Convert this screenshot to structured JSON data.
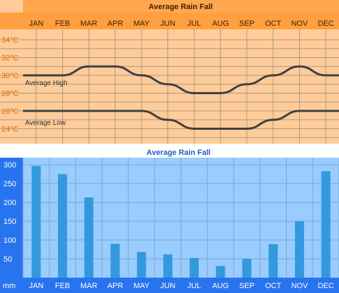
{
  "chart_data": [
    {
      "type": "line",
      "title": "Average Rain Fall",
      "categories": [
        "JAN",
        "FEB",
        "MAR",
        "APR",
        "MAY",
        "JUN",
        "JUL",
        "AUG",
        "SEP",
        "OCT",
        "NOV",
        "DEC"
      ],
      "y_ticks": [
        "34°C",
        "32°C",
        "30°C",
        "28°C",
        "26°C",
        "24°C"
      ],
      "ylim": [
        22,
        35
      ],
      "grid": true,
      "series": [
        {
          "name": "Average High",
          "values": [
            30,
            30,
            31,
            31,
            30,
            29,
            28,
            28,
            29,
            30,
            31,
            30
          ]
        },
        {
          "name": "Average Low",
          "values": [
            26,
            26,
            26,
            26,
            26,
            25,
            24,
            24,
            24,
            25,
            26,
            26
          ]
        }
      ],
      "colors": {
        "background": "#ffcc99",
        "header": "#ff9f3f",
        "line": "#404040",
        "tick_text": "#d86a00"
      }
    },
    {
      "type": "bar",
      "title": "Average Rain Fall",
      "categories": [
        "JAN",
        "FEB",
        "MAR",
        "APR",
        "MAY",
        "JUN",
        "JUL",
        "AUG",
        "SEP",
        "OCT",
        "NOV",
        "DEC"
      ],
      "values": [
        297,
        275,
        213,
        90,
        68,
        62,
        52,
        31,
        50,
        89,
        150,
        283
      ],
      "y_ticks": [
        "300",
        "250",
        "200",
        "150",
        "100",
        "50"
      ],
      "ylabel": "mm",
      "ylim": [
        0,
        320
      ],
      "grid": true,
      "colors": {
        "background": "#99ccff",
        "axis_band": "#2874ee",
        "bar": "#3399dd",
        "title": "#2160c0"
      }
    }
  ]
}
